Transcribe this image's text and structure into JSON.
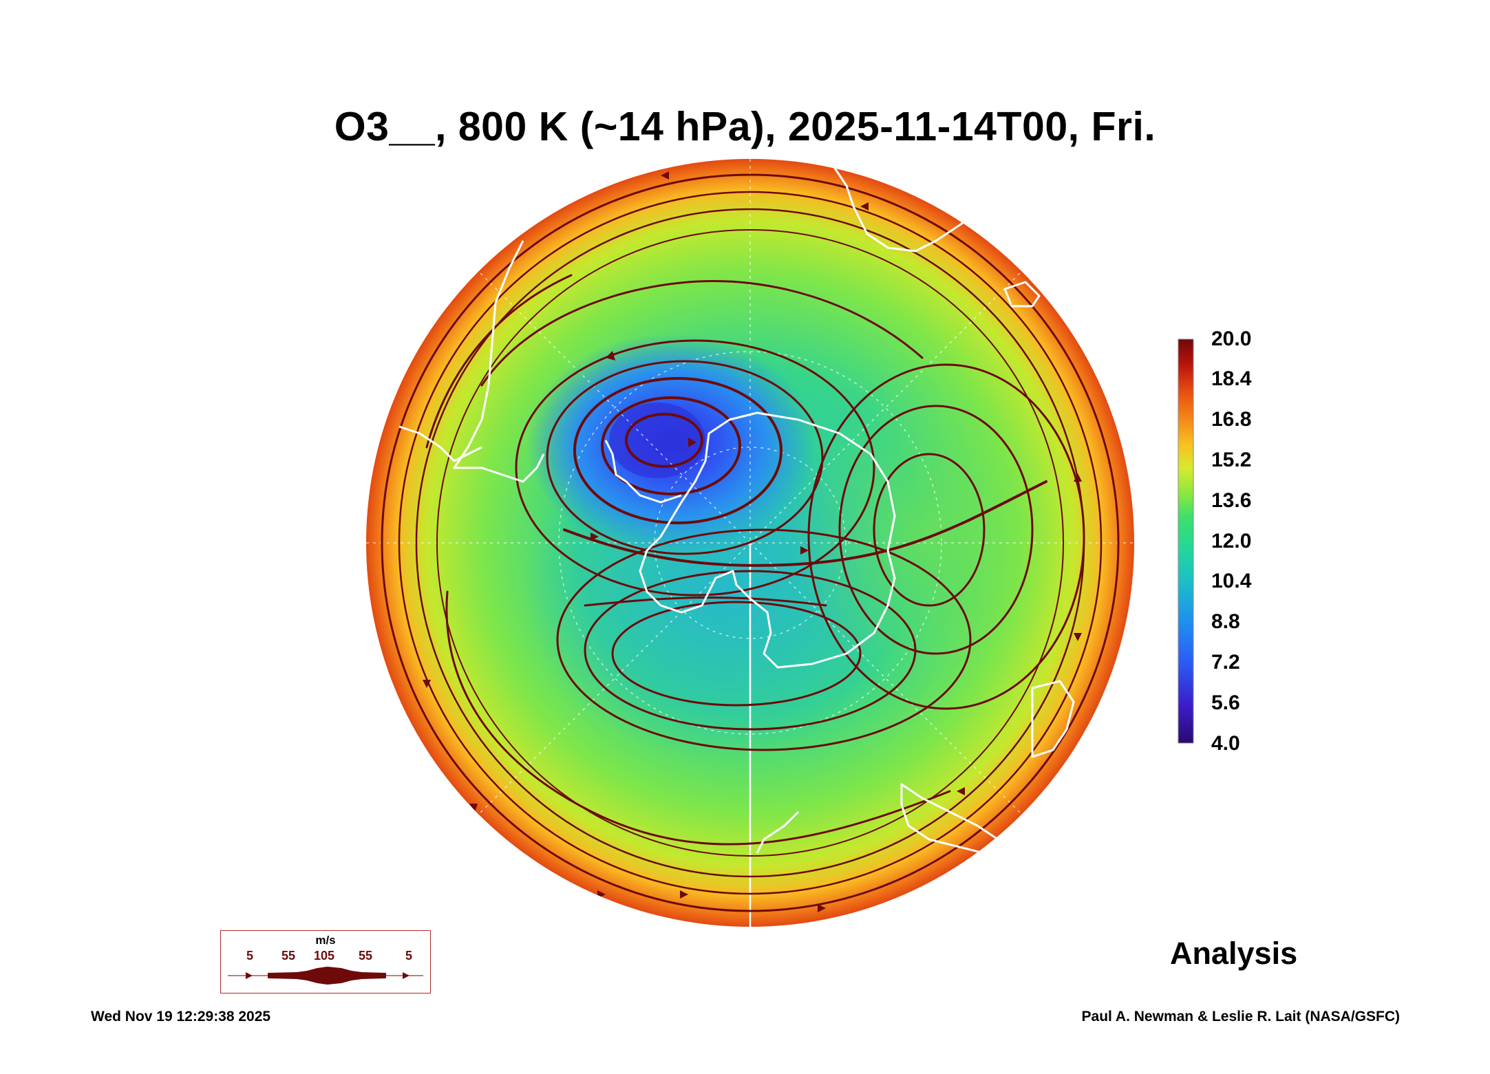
{
  "title": "O3__, 800 K (~14 hPa), 2025-11-14T00, Fri.",
  "colorbar": {
    "labels": [
      "20.0",
      "18.4",
      "16.8",
      "15.2",
      "13.6",
      "12.0",
      "10.4",
      "8.8",
      "7.2",
      "5.6",
      "4.0"
    ],
    "min": 4.0,
    "max": 20.0,
    "colors": [
      "#2a0a6e",
      "#3b1cc8",
      "#2b5cf5",
      "#1f8ff0",
      "#1bbfc8",
      "#22d89a",
      "#3ee06a",
      "#8ee83c",
      "#d6ea2c",
      "#f8c020",
      "#f58a18",
      "#e84e10",
      "#b8120c",
      "#6e0a0a"
    ]
  },
  "wind_legend": {
    "unit": "m/s",
    "values": [
      "5",
      "55",
      "105",
      "55",
      "5"
    ],
    "color": "#6e0a0a"
  },
  "label_analysis": "Analysis",
  "timestamp": "Wed Nov 19 12:29:38 2025",
  "credit": "Paul A. Newman & Leslie R. Lait (NASA/GSFC)",
  "colors": {
    "streamline": "#6e0a0a",
    "coast": "#ffffff",
    "grid": "#ffffff"
  }
}
